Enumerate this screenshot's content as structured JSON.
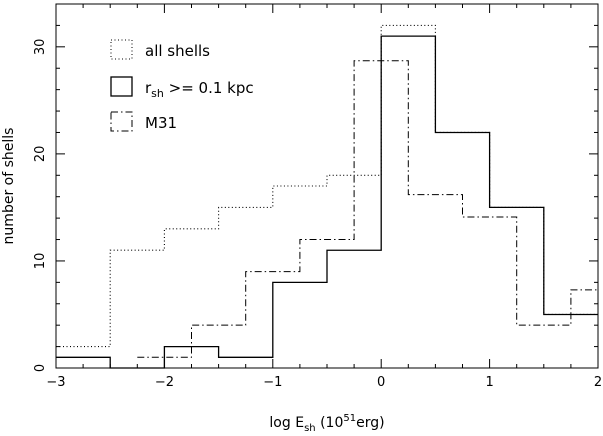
{
  "chart_data": {
    "type": "histogram",
    "xlabel": {
      "prefix": "log E",
      "sub": "sh",
      "open": " (10",
      "sup": "51",
      "close": "erg)"
    },
    "ylabel": "number of shells",
    "xlim": [
      -3,
      2
    ],
    "ylim": [
      0,
      34
    ],
    "xticks": [
      -3,
      -2,
      -1,
      0,
      1,
      2
    ],
    "xtick_labels": [
      "−3",
      "−2",
      "−1",
      "0",
      "1",
      "2"
    ],
    "yticks": [
      0,
      10,
      20,
      30
    ],
    "ytick_labels": [
      "0",
      "10",
      "20",
      "30"
    ],
    "legend_position": "upper-left",
    "series": [
      {
        "name": "all shells",
        "style": "dotted",
        "bin_edges": [
          -3,
          -2.5,
          -2,
          -1.5,
          -1,
          -0.5,
          0,
          0.5,
          1,
          1.5,
          2
        ],
        "values": [
          2,
          11,
          13,
          15,
          17,
          18,
          32,
          22,
          15,
          5
        ]
      },
      {
        "name_parts": {
          "base": "r",
          "sub": "sh",
          "rest": " >= 0.1 kpc"
        },
        "style": "solid",
        "bin_edges": [
          -3,
          -2.5,
          -2,
          -1.5,
          -1,
          -0.5,
          0,
          0.5,
          1,
          1.5,
          2
        ],
        "values": [
          1,
          0,
          2,
          1,
          8,
          11,
          31,
          22,
          15,
          5
        ]
      },
      {
        "name": "M31",
        "style": "dashdot",
        "bin_edges": [
          -2.25,
          -2,
          -1.75,
          -1.5,
          -1.25,
          -1,
          -0.75,
          -0.5,
          -0.25,
          0,
          0.25,
          0.5,
          0.75,
          1,
          1.25,
          1.5,
          1.75,
          2
        ],
        "values": [
          1,
          1,
          4,
          4,
          9,
          9,
          12,
          12,
          28.7,
          28.7,
          16.2,
          16.2,
          14.1,
          14.1,
          4,
          4,
          7.3
        ]
      }
    ]
  }
}
